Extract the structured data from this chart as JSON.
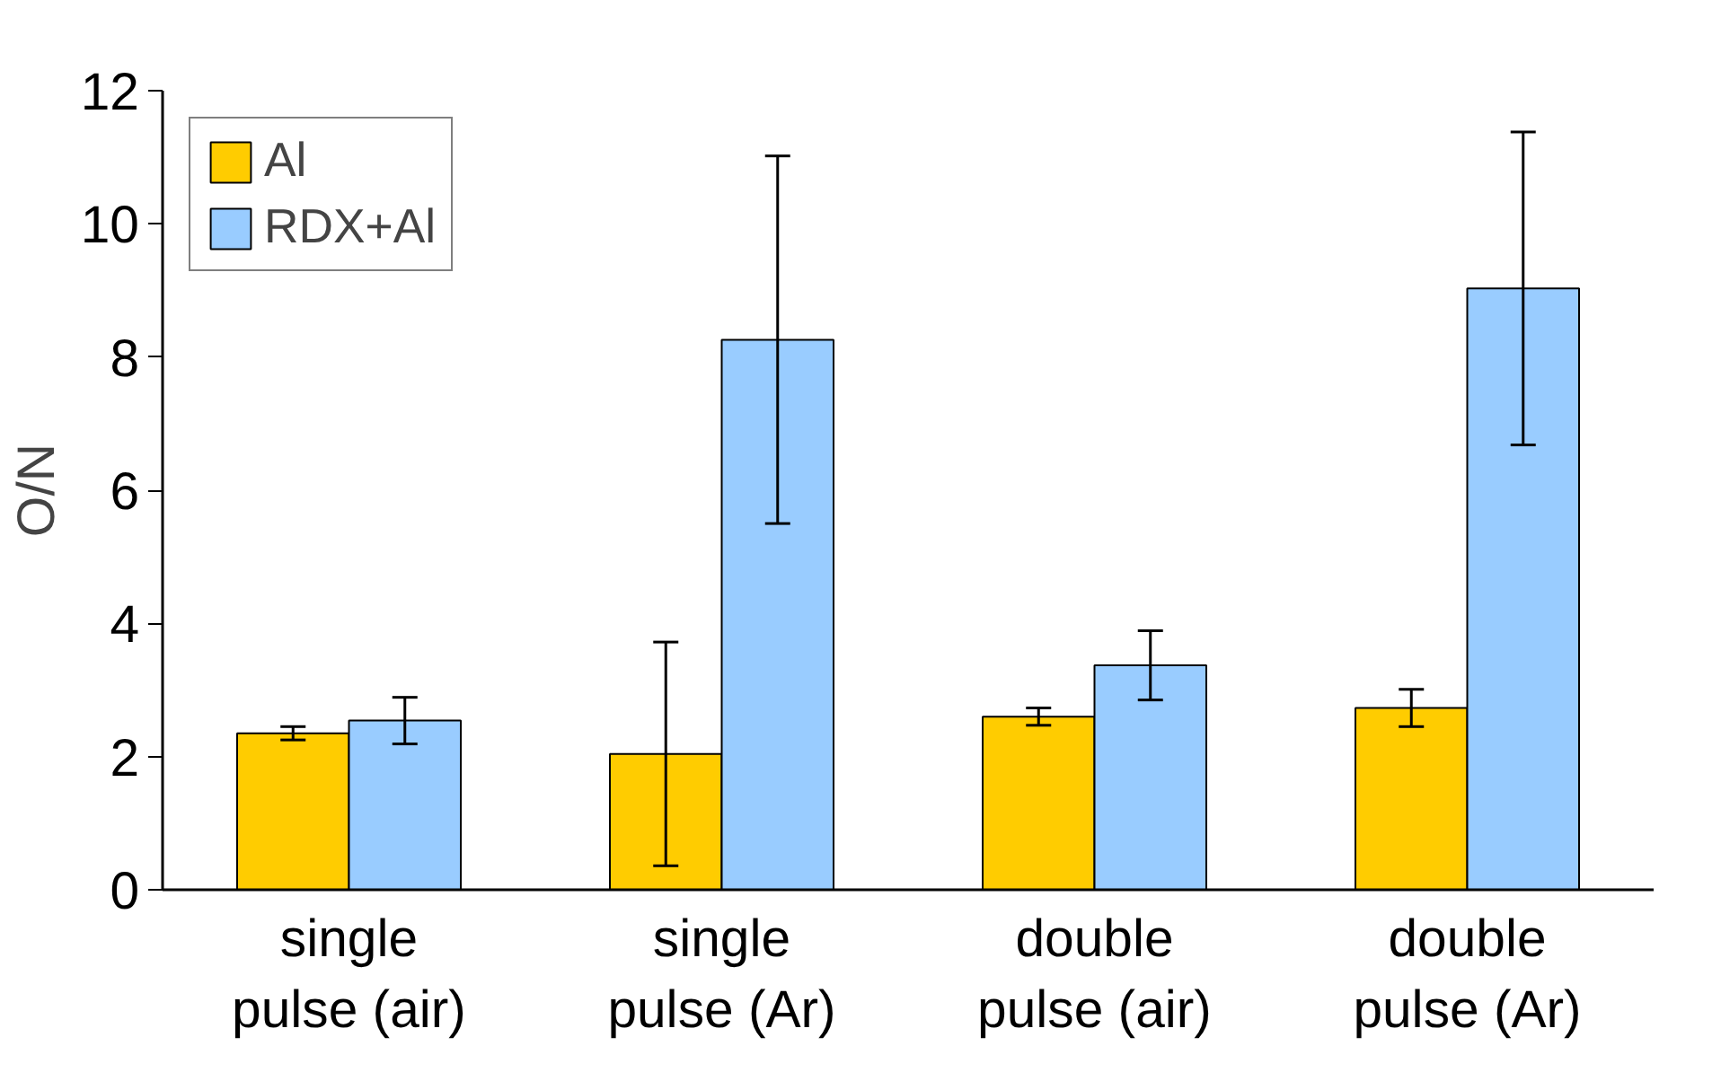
{
  "chart_data": {
    "type": "bar",
    "ylabel": "O/N",
    "categories": [
      "single pulse (air)",
      "single pulse (Ar)",
      "double pulse (air)",
      "double pulse (Ar)"
    ],
    "series": [
      {
        "name": "Al",
        "color": "#ffcc00",
        "values": [
          2.35,
          2.04,
          2.6,
          2.73
        ],
        "errors": [
          0.1,
          1.68,
          0.13,
          0.28
        ]
      },
      {
        "name": "RDX+Al",
        "color": "#99ccff",
        "values": [
          2.54,
          8.26,
          3.37,
          9.03
        ],
        "errors": [
          0.35,
          2.76,
          0.52,
          2.35
        ]
      }
    ],
    "ylim": [
      0,
      12
    ],
    "yticks": [
      0,
      2,
      4,
      6,
      8,
      10,
      12
    ],
    "grid": false,
    "legend": "top left"
  }
}
